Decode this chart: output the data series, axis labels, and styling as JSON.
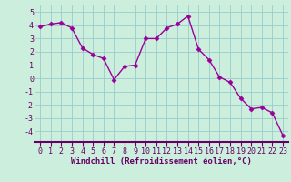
{
  "x": [
    0,
    1,
    2,
    3,
    4,
    5,
    6,
    7,
    8,
    9,
    10,
    11,
    12,
    13,
    14,
    15,
    16,
    17,
    18,
    19,
    20,
    21,
    22,
    23
  ],
  "y": [
    3.9,
    4.1,
    4.2,
    3.8,
    2.3,
    1.8,
    1.5,
    -0.1,
    0.9,
    1.0,
    3.0,
    3.0,
    3.8,
    4.1,
    4.7,
    2.2,
    1.4,
    0.1,
    -0.3,
    -1.5,
    -2.3,
    -2.2,
    -2.6,
    -4.3
  ],
  "line_color": "#990099",
  "marker": "D",
  "markersize": 2.5,
  "linewidth": 1.0,
  "bg_color": "#cceedd",
  "grid_color": "#99cccc",
  "xlabel": "Windchill (Refroidissement éolien,°C)",
  "xlabel_fontsize": 6.5,
  "tick_fontsize": 6,
  "xlim": [
    -0.5,
    23.5
  ],
  "ylim": [
    -4.8,
    5.5
  ],
  "yticks": [
    -4,
    -3,
    -2,
    -1,
    0,
    1,
    2,
    3,
    4,
    5
  ],
  "xtick_labels": [
    "0",
    "1",
    "2",
    "3",
    "4",
    "5",
    "6",
    "7",
    "8",
    "9",
    "10",
    "11",
    "12",
    "13",
    "14",
    "15",
    "16",
    "17",
    "18",
    "19",
    "20",
    "21",
    "22",
    "23"
  ],
  "spine_color": "#660066",
  "text_color": "#660066"
}
